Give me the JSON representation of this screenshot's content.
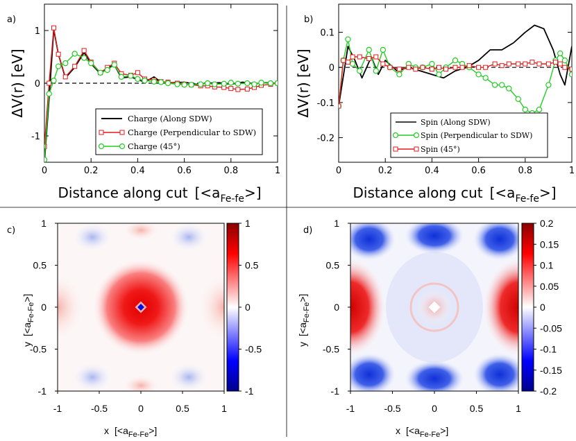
{
  "chart_data": [
    {
      "panel_label": "a)",
      "type": "line",
      "xlabel": "Distance along cut",
      "xlabel_unit": "[<a",
      "xlabel_sub": "Fe-fe",
      "xlabel_close": ">]",
      "ylabel": "ΔV(r)  [eV]",
      "xlim": [
        0,
        1
      ],
      "ylim": [
        -1.5,
        1.5
      ],
      "xticks": [
        "0",
        "0.2",
        "0.4",
        "0.6",
        "0.8",
        "1"
      ],
      "yticks": [
        "-1",
        "0",
        "1"
      ],
      "reference_line": 0,
      "series": [
        {
          "name": "Charge (Along SDW)",
          "color": "#000000",
          "marker": "none",
          "x": [
            0,
            0.02,
            0.04,
            0.06,
            0.09,
            0.13,
            0.17,
            0.2,
            0.24,
            0.27,
            0.3,
            0.33,
            0.37,
            0.4,
            0.43,
            0.47,
            0.5,
            0.55,
            0.6,
            0.65,
            0.7,
            0.75,
            0.8,
            0.85,
            0.9,
            0.95,
            1.0
          ],
          "y": [
            -1.5,
            -0.3,
            1.02,
            0.55,
            0.1,
            0.3,
            0.58,
            0.37,
            0.18,
            0.28,
            0.35,
            0.1,
            0.12,
            0.07,
            0.02,
            0.12,
            0.02,
            0.01,
            0.02,
            -0.02,
            0.0,
            0.01,
            -0.02,
            0.02,
            -0.01,
            0.01,
            0.0
          ]
        },
        {
          "name": "Charge (Perpendicular to SDW)",
          "color": "#e01919",
          "marker": "square",
          "x": [
            0,
            0.02,
            0.04,
            0.06,
            0.09,
            0.13,
            0.17,
            0.2,
            0.24,
            0.27,
            0.3,
            0.33,
            0.37,
            0.4,
            0.43,
            0.47,
            0.5,
            0.53,
            0.57,
            0.6,
            0.63,
            0.67,
            0.7,
            0.73,
            0.77,
            0.8,
            0.83,
            0.87,
            0.9,
            0.93,
            0.97,
            1.0
          ],
          "y": [
            -1.2,
            0.0,
            1.05,
            0.55,
            0.12,
            0.32,
            0.62,
            0.4,
            0.2,
            0.3,
            0.38,
            0.18,
            0.15,
            0.2,
            0.08,
            0.06,
            0.03,
            0.02,
            0.0,
            -0.02,
            -0.03,
            -0.05,
            -0.05,
            -0.07,
            -0.08,
            -0.1,
            -0.12,
            -0.11,
            -0.08,
            -0.04,
            -0.02,
            0.0
          ]
        },
        {
          "name": "Charge (45°)",
          "color": "#22cc22",
          "marker": "circle",
          "x": [
            0,
            0.02,
            0.04,
            0.06,
            0.09,
            0.13,
            0.17,
            0.2,
            0.24,
            0.27,
            0.3,
            0.33,
            0.37,
            0.4,
            0.43,
            0.47,
            0.5,
            0.53,
            0.57,
            0.6,
            0.63,
            0.67,
            0.7,
            0.73,
            0.77,
            0.8,
            0.83,
            0.87,
            0.9,
            0.93,
            0.97,
            1.0
          ],
          "y": [
            -1.45,
            -0.2,
            0.05,
            0.32,
            0.38,
            0.56,
            0.48,
            0.38,
            0.2,
            0.25,
            0.35,
            0.12,
            0.14,
            0.08,
            0.05,
            0.03,
            0.02,
            0.0,
            -0.02,
            -0.03,
            -0.03,
            -0.02,
            0.0,
            -0.02,
            -0.01,
            0.01,
            -0.01,
            0.0,
            -0.02,
            0.01,
            0.0,
            0.0
          ]
        }
      ],
      "legend_position": "lower-center"
    },
    {
      "panel_label": "b)",
      "type": "line",
      "xlabel": "Distance along cut",
      "xlabel_unit": "[<a",
      "xlabel_sub": "Fe-fe",
      "xlabel_close": ">]",
      "ylabel": "ΔV(r)  [eV]",
      "xlim": [
        0,
        1
      ],
      "ylim": [
        -0.27,
        0.18
      ],
      "xticks": [
        "0",
        "0.2",
        "0.4",
        "0.6",
        "0.8",
        "1"
      ],
      "yticks": [
        "-0.2",
        "-0.1",
        "0",
        "0.1"
      ],
      "reference_line": 0,
      "series": [
        {
          "name": "Spin (Along SDW)",
          "color": "#000000",
          "marker": "none",
          "x": [
            0,
            0.04,
            0.07,
            0.1,
            0.14,
            0.17,
            0.2,
            0.25,
            0.3,
            0.35,
            0.4,
            0.45,
            0.5,
            0.55,
            0.6,
            0.65,
            0.7,
            0.75,
            0.8,
            0.84,
            0.88,
            0.92,
            0.95,
            0.97,
            1.0
          ],
          "y": [
            -0.11,
            0.06,
            0.02,
            -0.03,
            0.03,
            -0.02,
            0.02,
            -0.01,
            0.0,
            -0.01,
            -0.02,
            -0.03,
            -0.01,
            0.0,
            0.02,
            0.05,
            0.05,
            0.07,
            0.1,
            0.12,
            0.11,
            0.05,
            -0.02,
            -0.05,
            0.06
          ]
        },
        {
          "name": "Spin (Perpendicular to SDW)",
          "color": "#22cc22",
          "marker": "circle",
          "x": [
            0,
            0.02,
            0.04,
            0.06,
            0.09,
            0.13,
            0.16,
            0.19,
            0.22,
            0.26,
            0.3,
            0.33,
            0.36,
            0.4,
            0.43,
            0.46,
            0.5,
            0.53,
            0.56,
            0.6,
            0.63,
            0.67,
            0.7,
            0.73,
            0.77,
            0.8,
            0.83,
            0.86,
            0.9,
            0.93,
            0.95,
            0.97,
            1.0
          ],
          "y": [
            -0.11,
            0.02,
            0.08,
            0.01,
            -0.01,
            0.05,
            -0.01,
            0.05,
            0.0,
            -0.02,
            0.01,
            0.0,
            0.0,
            0.01,
            -0.02,
            0.0,
            0.02,
            0.01,
            0.0,
            -0.02,
            -0.03,
            -0.05,
            -0.05,
            -0.06,
            -0.09,
            -0.12,
            -0.13,
            -0.12,
            -0.05,
            0.02,
            0.04,
            0.02,
            -0.02
          ]
        },
        {
          "name": "Spin (45°)",
          "color": "#e01919",
          "marker": "square",
          "x": [
            0,
            0.02,
            0.04,
            0.06,
            0.09,
            0.13,
            0.16,
            0.19,
            0.22,
            0.26,
            0.3,
            0.33,
            0.36,
            0.4,
            0.43,
            0.46,
            0.5,
            0.53,
            0.56,
            0.6,
            0.63,
            0.67,
            0.7,
            0.73,
            0.77,
            0.8,
            0.83,
            0.86,
            0.9,
            0.93,
            0.95,
            0.97,
            1.0
          ],
          "y": [
            -0.11,
            0.02,
            0.015,
            0.03,
            0.03,
            0.025,
            0.03,
            0.01,
            0.0,
            -0.005,
            0.0,
            -0.005,
            0.0,
            -0.005,
            0.0,
            -0.005,
            0.0,
            0.0,
            0.005,
            0.0,
            0.0,
            0.01,
            0.005,
            0.01,
            0.01,
            0.01,
            0.015,
            0.01,
            0.01,
            0.015,
            0.01,
            0.0,
            -0.005
          ]
        }
      ],
      "legend_position": "lower-center"
    },
    {
      "panel_label": "c)",
      "type": "heatmap",
      "xlabel": "x",
      "ylabel": "y",
      "axis_unit": "[<a",
      "axis_unit_sub": "Fe-Fe",
      "axis_unit_close": ">]",
      "xlim": [
        -1,
        1
      ],
      "ylim": [
        -1,
        1
      ],
      "xticks": [
        "-1",
        "-0.5",
        "0",
        "0.5",
        "1"
      ],
      "yticks": [
        "1",
        "0.5",
        "0",
        "-0.5",
        "-1"
      ],
      "colorbar_ticks": [
        "1",
        "0.5",
        "0",
        "-0.5",
        "-1"
      ],
      "colorbar_range": [
        -1,
        1
      ],
      "colormap": [
        "#00008b",
        "#0000ff",
        "#ffffff",
        "#ff0000",
        "#8b0000"
      ]
    },
    {
      "panel_label": "d)",
      "type": "heatmap",
      "xlabel": "x",
      "ylabel": "y",
      "axis_unit": "[<a",
      "axis_unit_sub": "Fe-Fe",
      "axis_unit_close": ">]",
      "xlim": [
        -1,
        1
      ],
      "ylim": [
        -1,
        1
      ],
      "xticks": [
        "-1",
        "-0.5",
        "0",
        "0.5",
        "1"
      ],
      "yticks": [
        "1",
        "0.5",
        "0",
        "-0.5",
        "-1"
      ],
      "colorbar_ticks": [
        "0.2",
        "0.15",
        "0.1",
        "0.05",
        "0",
        "-0.05",
        "-0.1",
        "-0.15",
        "-0.2"
      ],
      "colorbar_range": [
        -0.2,
        0.2
      ],
      "colormap": [
        "#00008b",
        "#0000ff",
        "#ffffff",
        "#ff0000",
        "#8b0000"
      ]
    }
  ]
}
